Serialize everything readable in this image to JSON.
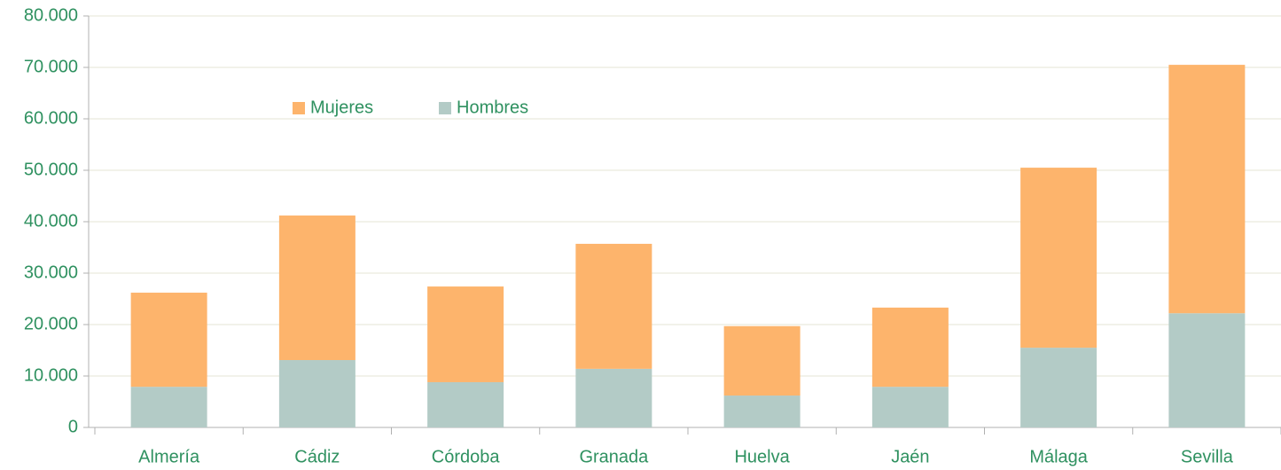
{
  "chart_data": {
    "type": "stacked_bar",
    "categories": [
      "Almería",
      "Cádiz",
      "Córdoba",
      "Granada",
      "Huelva",
      "Jaén",
      "Málaga",
      "Sevilla"
    ],
    "series": [
      {
        "name": "Mujeres",
        "color": "#fdb46c",
        "values": [
          18300,
          28100,
          18600,
          24300,
          13500,
          15400,
          35000,
          48300
        ]
      },
      {
        "name": "Hombres",
        "color": "#b3cbc6",
        "values": [
          7900,
          13100,
          8800,
          11400,
          6200,
          7900,
          15500,
          22200
        ]
      }
    ],
    "ylim": [
      0,
      80000
    ],
    "yticks": [
      0,
      {
        "value": 10000,
        "label": "10.000"
      },
      {
        "value": 20000,
        "label": "20.000"
      },
      {
        "value": 30000,
        "label": "30.000"
      },
      {
        "value": 40000,
        "label": "40.000"
      },
      {
        "value": 50000,
        "label": "50.000"
      },
      {
        "value": 60000,
        "label": "60.000"
      },
      {
        "value": 70000,
        "label": "70.000"
      },
      {
        "value": 80000,
        "label": "80.000"
      }
    ],
    "grid": true,
    "legend": "top-left"
  }
}
